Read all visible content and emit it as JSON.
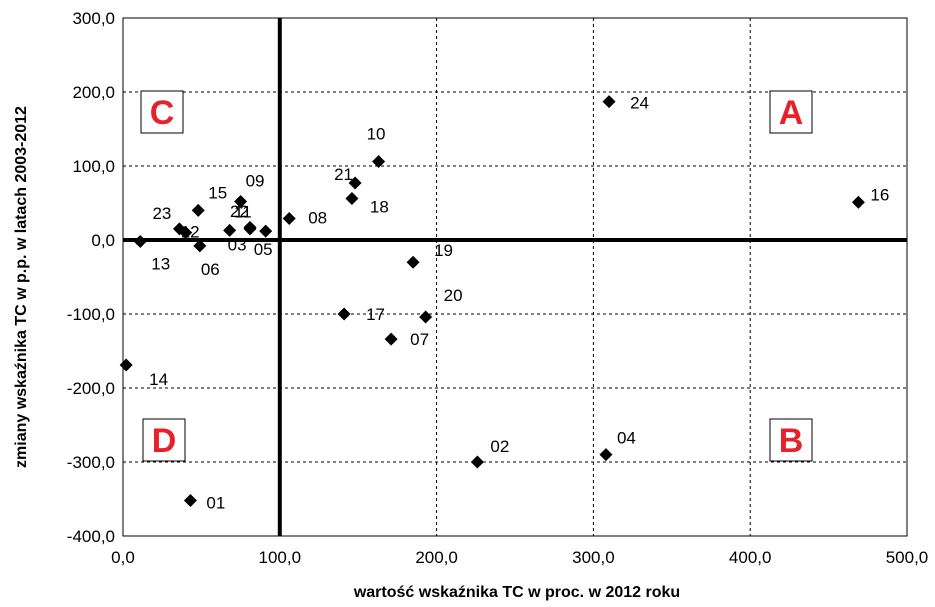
{
  "chart_data": {
    "type": "scatter",
    "title": "",
    "xlabel": "wartość wskaźnika TC w proc. w 2012 roku",
    "ylabel": "zmiany wskaźnika TC w p.p. w latach 2003-2012",
    "xlim": [
      0,
      500
    ],
    "ylim": [
      -400,
      300
    ],
    "x_ticks": [
      0,
      100,
      200,
      300,
      400,
      500
    ],
    "y_ticks": [
      -400,
      -300,
      -200,
      -100,
      0,
      100,
      200,
      300
    ],
    "x_tick_labels": [
      "0,0",
      "100,0",
      "200,0",
      "300,0",
      "400,0",
      "500,0"
    ],
    "y_tick_labels": [
      "-400,0",
      "-300,0",
      "-200,0",
      "-100,0",
      "0,0",
      "100,0",
      "200,0",
      "300,0"
    ],
    "grid": true,
    "grid_style": "dashed",
    "marker": "diamond",
    "marker_color": "#000000",
    "divider_lines": {
      "x": 100,
      "y": 0
    },
    "quadrant_label_color": "#e8202a",
    "quadrants": [
      {
        "label": "A",
        "position": "top-right"
      },
      {
        "label": "B",
        "position": "bottom-right"
      },
      {
        "label": "C",
        "position": "top-left"
      },
      {
        "label": "D",
        "position": "bottom-left"
      }
    ],
    "points": [
      {
        "label": "01",
        "x": 43,
        "y": -352
      },
      {
        "label": "02",
        "x": 226,
        "y": -300
      },
      {
        "label": "03",
        "x": 68,
        "y": 13
      },
      {
        "label": "04",
        "x": 308,
        "y": -290
      },
      {
        "label": "05",
        "x": 91,
        "y": 12
      },
      {
        "label": "06",
        "x": 49,
        "y": -8
      },
      {
        "label": "07",
        "x": 171,
        "y": -134
      },
      {
        "label": "08",
        "x": 106,
        "y": 29
      },
      {
        "label": "09",
        "x": 75,
        "y": 52
      },
      {
        "label": "10",
        "x": 163,
        "y": 106
      },
      {
        "label": "11",
        "x": 81,
        "y": 17
      },
      {
        "label": "12",
        "x": 40,
        "y": 10
      },
      {
        "label": "13",
        "x": 11,
        "y": -2
      },
      {
        "label": "14",
        "x": 2,
        "y": -169
      },
      {
        "label": "15",
        "x": 48,
        "y": 40
      },
      {
        "label": "16",
        "x": 469,
        "y": 51
      },
      {
        "label": "17",
        "x": 141,
        "y": -100
      },
      {
        "label": "18",
        "x": 146,
        "y": 56
      },
      {
        "label": "19",
        "x": 185,
        "y": -30
      },
      {
        "label": "20",
        "x": 193,
        "y": -104
      },
      {
        "label": "21",
        "x": 148,
        "y": 77
      },
      {
        "label": "22",
        "x": 81,
        "y": 15
      },
      {
        "label": "23",
        "x": 36,
        "y": 15
      },
      {
        "label": "24",
        "x": 310,
        "y": 187
      }
    ]
  }
}
